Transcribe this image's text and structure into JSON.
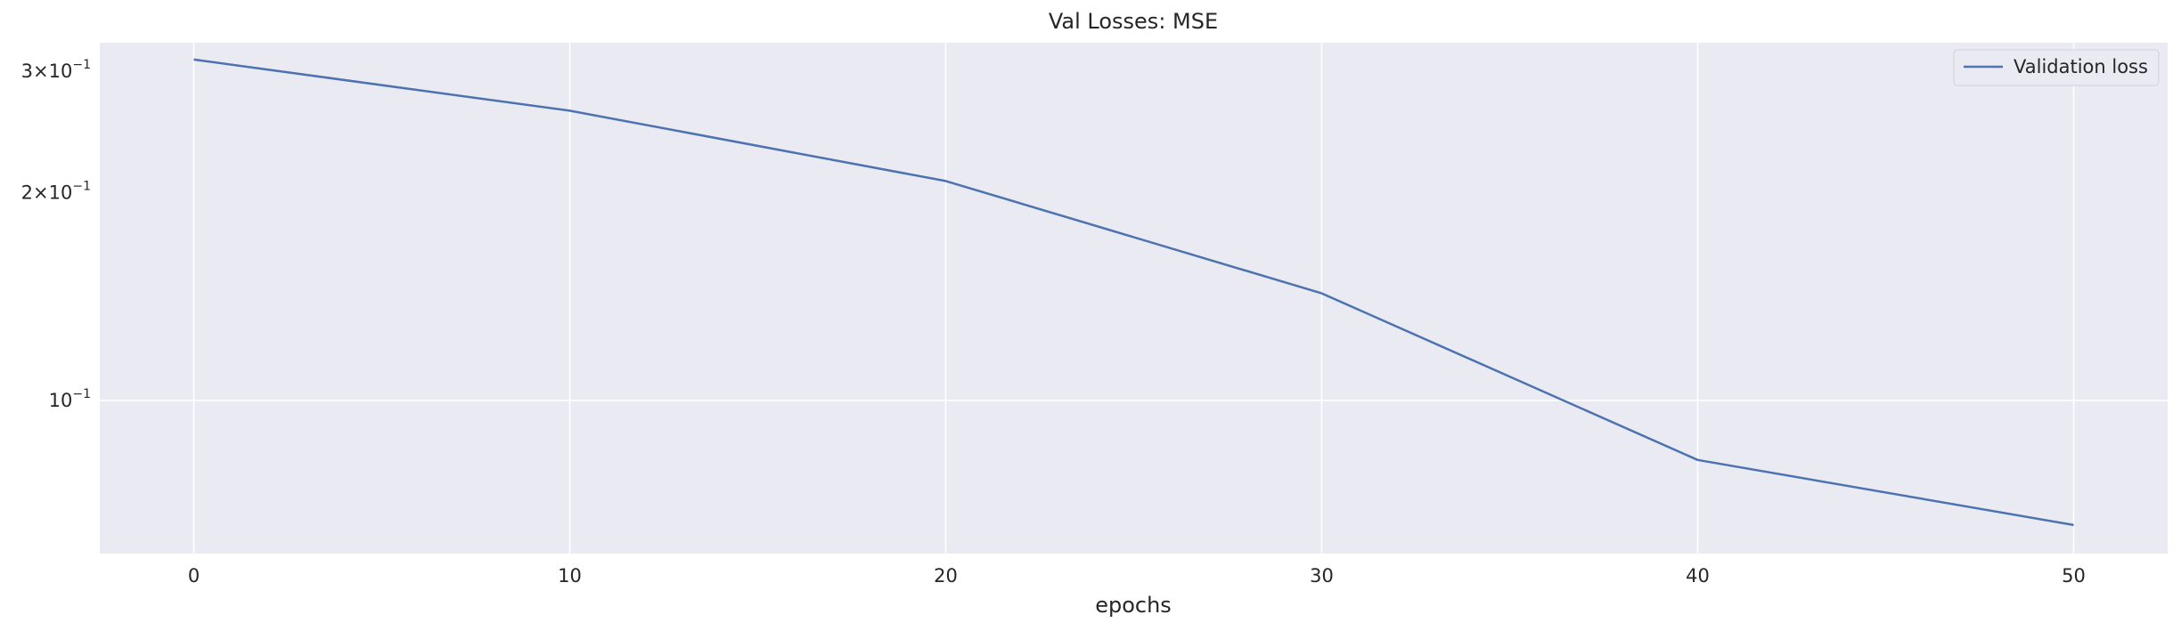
{
  "chart_data": {
    "type": "line",
    "title": "Val Losses:  MSE",
    "xlabel": "epochs",
    "ylabel": "",
    "yscale": "log",
    "x": [
      0,
      10,
      20,
      30,
      40,
      50
    ],
    "series": [
      {
        "name": "Validation loss",
        "values": [
          0.312,
          0.263,
          0.208,
          0.143,
          0.082,
          0.066
        ],
        "color": "#4c72b0"
      }
    ],
    "xlim": [
      -2.5,
      52.5
    ],
    "ylim": [
      0.06,
      0.33
    ],
    "xticks": [
      0,
      10,
      20,
      30,
      40,
      50
    ],
    "xtick_labels": [
      "0",
      "10",
      "20",
      "30",
      "40",
      "50"
    ],
    "yticks": [
      {
        "value": 0.3,
        "mantissa": "3",
        "times": "×",
        "base": "10",
        "exponent": "−1"
      },
      {
        "value": 0.2,
        "mantissa": "2",
        "times": "×",
        "base": "10",
        "exponent": "−1"
      },
      {
        "value": 0.1,
        "mantissa": "",
        "times": "",
        "base": "10",
        "exponent": "−1"
      }
    ],
    "grid": true,
    "legend_position": "top-right",
    "background_color": "#eaeaf2",
    "grid_color": "#ffffff"
  }
}
